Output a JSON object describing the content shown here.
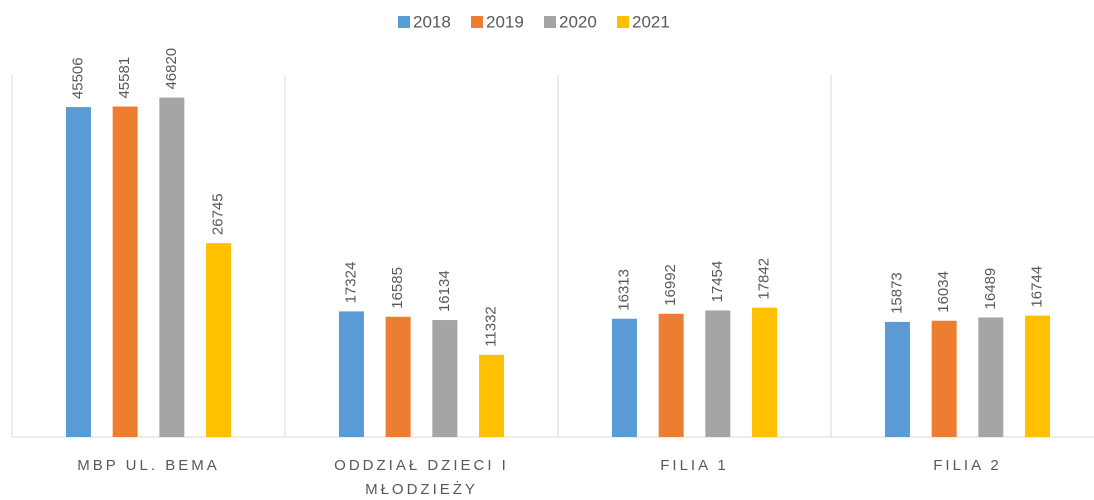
{
  "chart_data": {
    "type": "bar",
    "categories": [
      "MBP UL. BEMA",
      "ODDZIAŁ DZIECI I MŁODZIEŻY",
      "FILIA 1",
      "FILIA 2"
    ],
    "series": [
      {
        "name": "2018",
        "color": "#5b9bd5",
        "values": [
          45506,
          17324,
          16313,
          15873
        ]
      },
      {
        "name": "2019",
        "color": "#ed7d31",
        "values": [
          45581,
          16585,
          16992,
          16034
        ]
      },
      {
        "name": "2020",
        "color": "#a5a5a5",
        "values": [
          46820,
          16134,
          17454,
          16489
        ]
      },
      {
        "name": "2021",
        "color": "#ffc000",
        "values": [
          26745,
          11332,
          17842,
          16744
        ]
      }
    ],
    "ylim": [
      0,
      60000
    ],
    "legend": "top"
  }
}
